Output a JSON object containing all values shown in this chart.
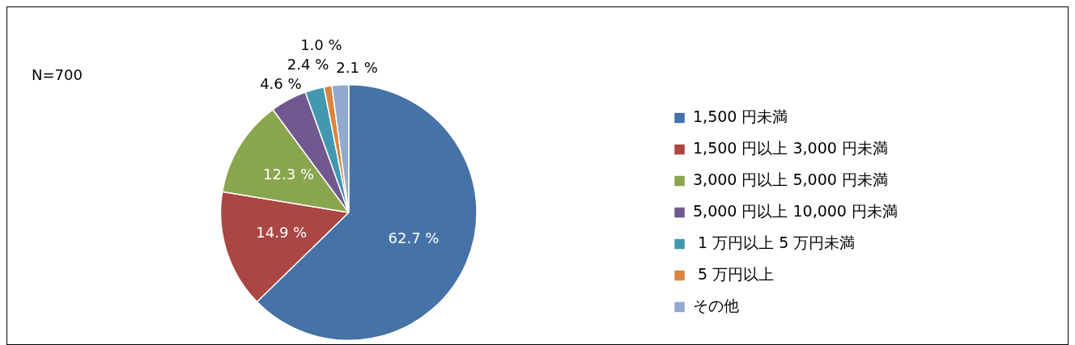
{
  "chart_data": {
    "type": "pie",
    "categories": [
      "1,500 円未満",
      "1,500 円以上 3,000 円未満",
      "3,000 円以上 5,000 円未満",
      "5,000 円以上 10,000 円未満",
      " 1 万円以上 5 万円未満",
      " 5 万円以上",
      "その他"
    ],
    "values": [
      62.7,
      14.9,
      12.3,
      4.6,
      2.4,
      1.0,
      2.1
    ],
    "value_labels": [
      "62.7 %",
      "14.9 %",
      "12.3 %",
      "4.6 %",
      "2.4 %",
      "1.0 %",
      "2.1 %"
    ],
    "colors": [
      "#4572a7",
      "#aa4643",
      "#89a54e",
      "#71588f",
      "#4198af",
      "#db843d",
      "#93a9cf"
    ],
    "annotations": [
      "N=700"
    ],
    "legend": "right"
  }
}
